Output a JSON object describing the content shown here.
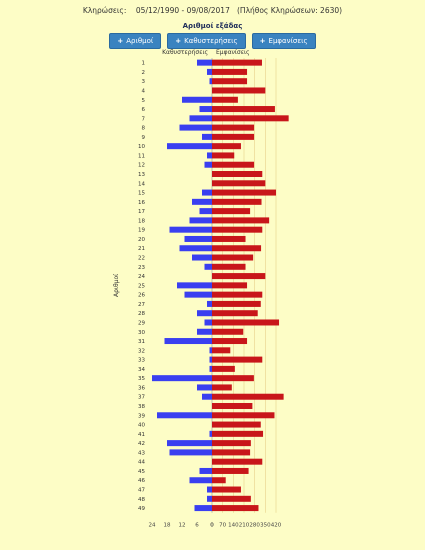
{
  "header": {
    "draws_label": "Κληρώσεις:",
    "date_range": "05/12/1990 - 09/08/2017",
    "draw_count": "(Πλήθος Κληρώσεων: 2630)"
  },
  "subtitle": "Αριθμοί εξάδας",
  "buttons": [
    {
      "label": "Αριθμοί"
    },
    {
      "label": "Καθυστερήσεις"
    },
    {
      "label": "Εμφανίσεις"
    }
  ],
  "colors": {
    "delays": "#3a3ff0",
    "appearances": "#c8161a",
    "grid": "#e8d08a"
  },
  "chart_data": {
    "type": "bar",
    "orientation": "horizontal",
    "ylabel": "Αριθμοί",
    "categories": [
      "1",
      "2",
      "3",
      "4",
      "5",
      "6",
      "7",
      "8",
      "9",
      "10",
      "11",
      "12",
      "13",
      "14",
      "15",
      "16",
      "17",
      "18",
      "19",
      "20",
      "21",
      "22",
      "23",
      "24",
      "25",
      "26",
      "27",
      "28",
      "29",
      "30",
      "31",
      "32",
      "33",
      "34",
      "35",
      "36",
      "37",
      "38",
      "39",
      "40",
      "41",
      "42",
      "43",
      "44",
      "45",
      "46",
      "47",
      "48",
      "49"
    ],
    "series": [
      {
        "name": "Καθυστερήσεις",
        "color": "#3a3ff0",
        "values": [
          6,
          2,
          1,
          0,
          12,
          5,
          9,
          13,
          4,
          18,
          2,
          3,
          0,
          0,
          4,
          8,
          5,
          9,
          17,
          11,
          13,
          8,
          3,
          0,
          14,
          11,
          2,
          6,
          3,
          6,
          19,
          1,
          1,
          1,
          24,
          6,
          4,
          0,
          22,
          0,
          1,
          18,
          17,
          0,
          5,
          9,
          2,
          2,
          7
        ]
      },
      {
        "name": "Εμφανίσεις",
        "color": "#c8161a",
        "values": [
          328,
          230,
          230,
          350,
          170,
          413,
          503,
          276,
          276,
          190,
          146,
          276,
          330,
          350,
          420,
          325,
          250,
          375,
          330,
          220,
          322,
          270,
          220,
          350,
          230,
          330,
          320,
          300,
          440,
          205,
          230,
          120,
          330,
          150,
          275,
          130,
          470,
          265,
          410,
          320,
          335,
          255,
          250,
          330,
          240,
          90,
          190,
          255,
          305
        ]
      }
    ],
    "x_ticks_left": [
      "24",
      "18",
      "12",
      "6",
      "0"
    ],
    "x_ticks_right": [
      "0",
      "70",
      "140",
      "210",
      "280",
      "350",
      "420"
    ],
    "left_max": 24,
    "right_max": 420,
    "grid": true
  }
}
